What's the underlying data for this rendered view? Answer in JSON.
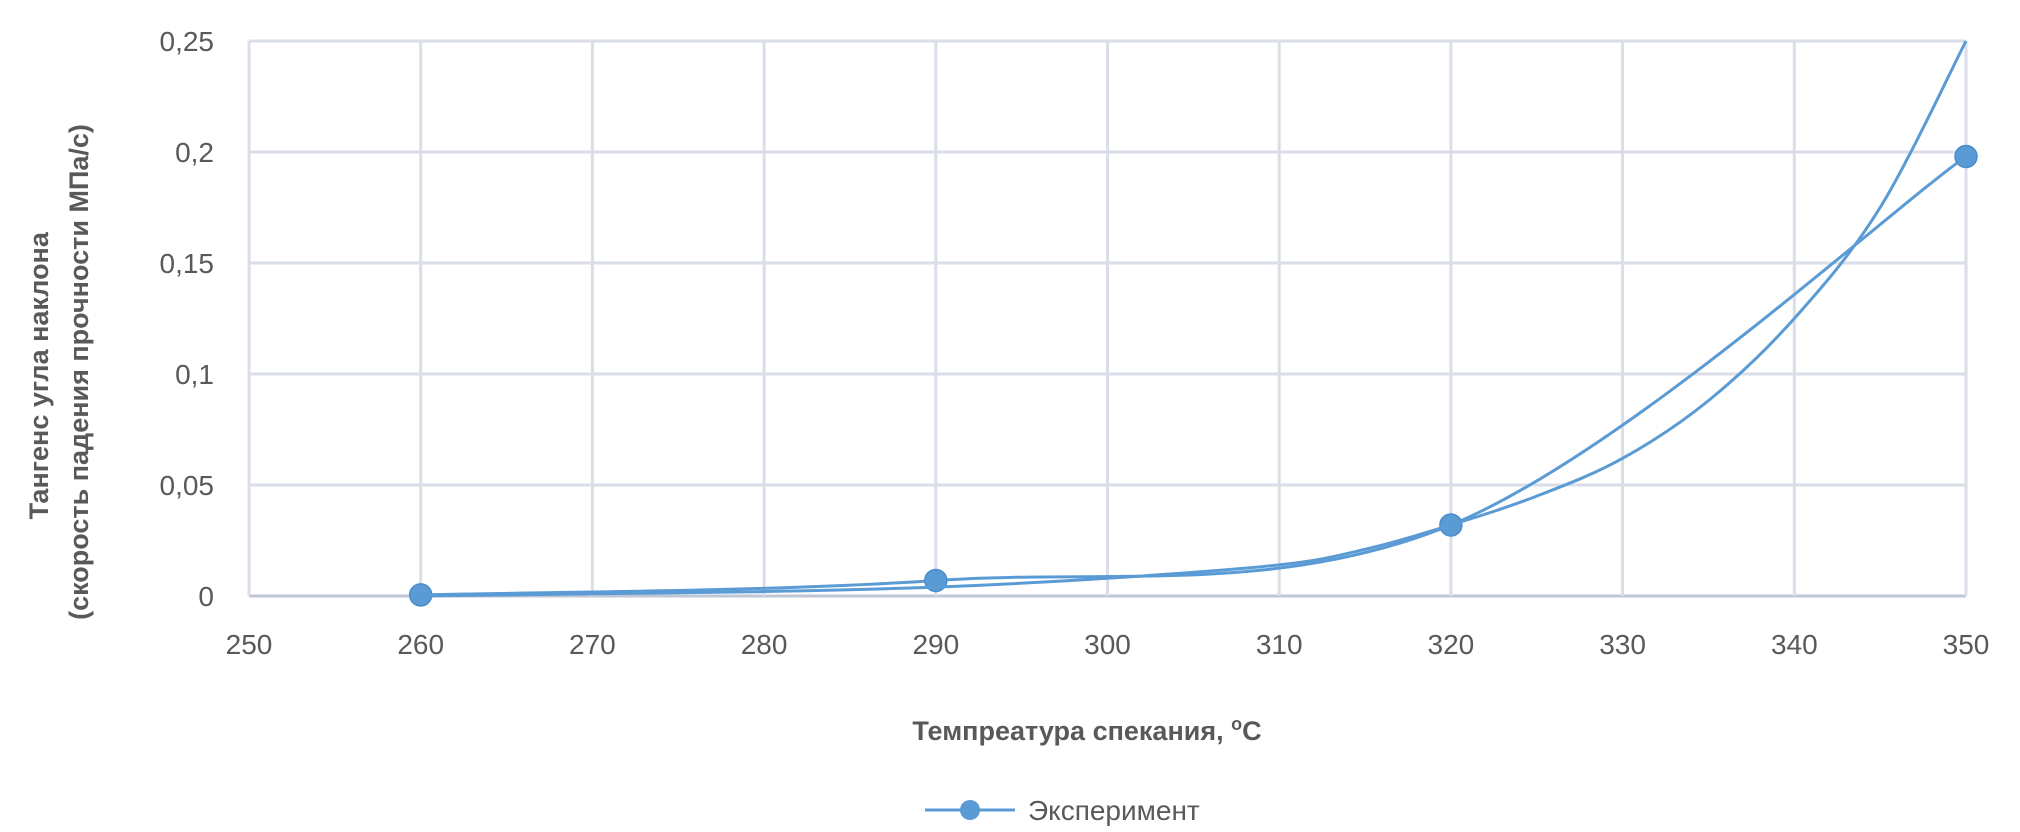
{
  "chart_data": {
    "type": "line",
    "title": "",
    "xlabel": "Темпреатура спекания, ",
    "xlabel_sup": "o",
    "xlabel_suffix": "С",
    "ylabel_line1": "Тангенс угла наклона",
    "ylabel_line2": "(скорость падения прочности МПа/с)",
    "xlim": [
      250,
      350
    ],
    "ylim": [
      0,
      0.25
    ],
    "x_ticks": [
      "250",
      "260",
      "270",
      "280",
      "290",
      "300",
      "310",
      "320",
      "330",
      "340",
      "350"
    ],
    "y_ticks": [
      "0",
      "0,05",
      "0,1",
      "0,15",
      "0,2",
      "0,25"
    ],
    "grid": true,
    "legend_position": "bottom",
    "colors": {
      "series": "#5B9BD5",
      "grid": "#D9DEE8",
      "axis": "#BFC6D4",
      "text": "#595959"
    },
    "series": [
      {
        "name": "Эксперимент",
        "x": [
          260,
          290,
          320,
          350
        ],
        "y": [
          0.0005,
          0.007,
          0.032,
          0.198
        ],
        "smooth": true,
        "markers": true
      },
      {
        "x": [
          260,
          270,
          280,
          290,
          300,
          310,
          315,
          320,
          325,
          330,
          335,
          340,
          345,
          350
        ],
        "y": [
          0.0,
          0.001,
          0.002,
          0.004,
          0.008,
          0.014,
          0.021,
          0.032,
          0.045,
          0.062,
          0.088,
          0.125,
          0.175,
          0.25
        ],
        "trendline": true,
        "markers": false
      }
    ]
  }
}
